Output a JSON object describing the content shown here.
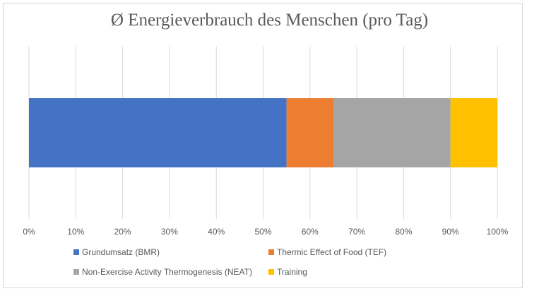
{
  "chart_data": {
    "type": "bar",
    "orientation": "horizontal",
    "stacked": true,
    "title": "Ø Energieverbrauch des Menschen (pro Tag)",
    "xlim": [
      0,
      100
    ],
    "x_unit": "%",
    "x_ticks": [
      "0%",
      "10%",
      "20%",
      "30%",
      "40%",
      "50%",
      "60%",
      "70%",
      "80%",
      "90%",
      "100%"
    ],
    "grid": "vertical",
    "legend_position": "bottom",
    "categories": [
      ""
    ],
    "series": [
      {
        "name": "Grundumsatz (BMR)",
        "values": [
          55
        ],
        "color": "#4472c4"
      },
      {
        "name": "Thermic Effect of Food (TEF)",
        "values": [
          10
        ],
        "color": "#ed7d31"
      },
      {
        "name": "Non-Exercise Activity Thermogenesis (NEAT)",
        "values": [
          25
        ],
        "color": "#a5a5a5"
      },
      {
        "name": "Training",
        "values": [
          10
        ],
        "color": "#ffc000"
      }
    ]
  }
}
